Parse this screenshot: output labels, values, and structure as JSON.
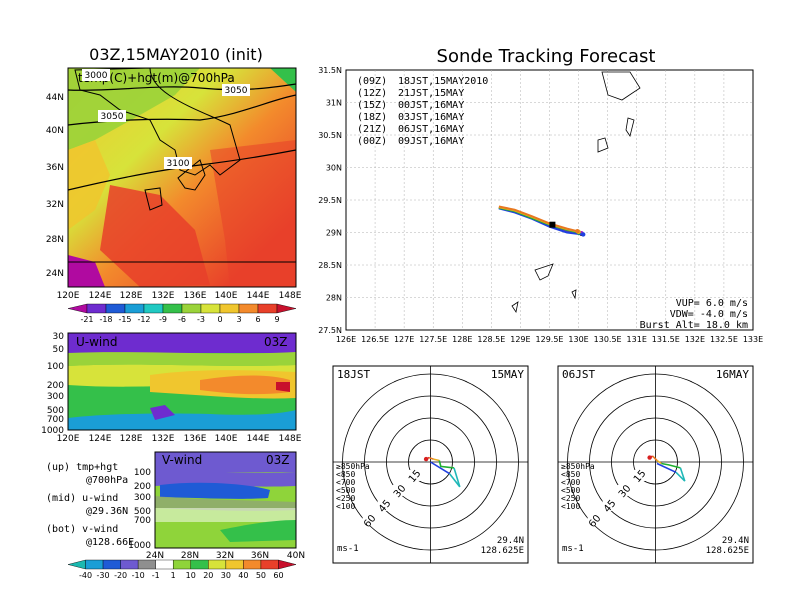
{
  "left_title": "03Z,15MAY2010 (init)",
  "right_title": "Sonde Tracking Forecast",
  "map": {
    "var_label": "temp(C)+hgt(m)@700hPa",
    "xticks": [
      "120E",
      "124E",
      "128E",
      "132E",
      "136E",
      "140E",
      "144E",
      "148E"
    ],
    "yticks": [
      "44N",
      "40N",
      "36N",
      "32N",
      "28N",
      "24N"
    ],
    "contours": [
      "3000",
      "3050",
      "3050",
      "3100"
    ],
    "cbar_labels": [
      "-21",
      "-18",
      "-15",
      "-12",
      "-9",
      "-6",
      "-3",
      "0",
      "3",
      "6",
      "9"
    ],
    "cbar_colors": [
      "#b00aa0",
      "#6e2ccf",
      "#1f5bd6",
      "#1a9ed6",
      "#20c9c2",
      "#34c04a",
      "#9ad33a",
      "#d7e33a",
      "#f0c62e",
      "#f38a2c",
      "#e8402a",
      "#c8102c"
    ]
  },
  "uwind": {
    "label": "U-wind",
    "time": "03Z",
    "yticks": [
      "30",
      "50",
      "100",
      "200",
      "300",
      "500",
      "700",
      "1000"
    ],
    "xticks": [
      "120E",
      "124E",
      "128E",
      "132E",
      "136E",
      "140E",
      "144E",
      "148E"
    ]
  },
  "vwind": {
    "label": "V-wind",
    "time": "03Z",
    "yticks": [
      "100",
      "200",
      "300",
      "500",
      "700",
      "1000"
    ],
    "xticks": [
      "24N",
      "28N",
      "32N",
      "36N",
      "40N"
    ]
  },
  "legend_notes": [
    {
      "a": "(up) tmp+hgt",
      "b": "@700hPa"
    },
    {
      "a": "(mid) u-wind",
      "b": "@29.36N"
    },
    {
      "a": "(bot) v-wind",
      "b": "@128.66E"
    }
  ],
  "wind_cbar": {
    "labels": [
      "-40",
      "-30",
      "-20",
      "-10",
      "-1",
      "1",
      "10",
      "20",
      "30",
      "40",
      "50",
      "60"
    ],
    "colors": [
      "#1bb9b0",
      "#1a9ed6",
      "#1f5bd6",
      "#6e5ad0",
      "#8f8f8f",
      "#ffffff",
      "#8fd43a",
      "#34c04a",
      "#d7e33a",
      "#f0c62e",
      "#f38a2c",
      "#e8402a",
      "#c8102c"
    ]
  },
  "chart_data": [
    {
      "type": "line",
      "title": "Sonde Tracking Forecast",
      "xticks": [
        "126E",
        "126.5E",
        "127E",
        "127.5E",
        "128E",
        "128.5E",
        "129E",
        "129.5E",
        "130E",
        "130.5E",
        "131E",
        "131.5E",
        "132E",
        "132.5E",
        "133E"
      ],
      "yticks": [
        "31.5N",
        "31N",
        "30.5N",
        "30N",
        "29.5N",
        "29N",
        "28.5N",
        "28N",
        "27.5N"
      ],
      "xlim": [
        126,
        133
      ],
      "ylim": [
        27.5,
        31.5
      ],
      "grid": true,
      "legend": [
        {
          "code": "(09Z)",
          "text": "18JST,15MAY2010",
          "color": "#000000"
        },
        {
          "code": "(12Z)",
          "text": "21JST,15MAY",
          "color": "#a020c0"
        },
        {
          "code": "(15Z)",
          "text": "00JST,16MAY",
          "color": "#2040e0"
        },
        {
          "code": "(18Z)",
          "text": "03JST,16MAY",
          "color": "#20b030"
        },
        {
          "code": "(21Z)",
          "text": "06JST,16MAY",
          "color": "#e8b020"
        },
        {
          "code": "(00Z)",
          "text": "09JST,16MAY",
          "color": "#e87820"
        }
      ],
      "series": [
        {
          "name": "(09Z) 18JST,15MAY2010",
          "color": "#000000",
          "x": [
            128.63,
            128.9,
            129.2,
            129.5,
            129.8,
            130.05
          ],
          "y": [
            29.38,
            29.32,
            29.22,
            29.1,
            29.02,
            28.98
          ]
        },
        {
          "name": "(12Z) 21JST,15MAY",
          "color": "#a020c0",
          "x": [
            128.63,
            128.9,
            129.2,
            129.5,
            129.8,
            130.05
          ],
          "y": [
            29.39,
            29.33,
            29.23,
            29.11,
            29.03,
            28.99
          ]
        },
        {
          "name": "(15Z) 00JST,16MAY",
          "color": "#2040e0",
          "x": [
            128.63,
            128.9,
            129.2,
            129.5,
            129.8,
            130.08
          ],
          "y": [
            29.37,
            29.31,
            29.21,
            29.09,
            29.0,
            28.97
          ]
        },
        {
          "name": "(18Z) 03JST,16MAY",
          "color": "#20b030",
          "x": [
            128.63,
            128.9,
            129.2,
            129.5,
            129.8,
            130.0
          ],
          "y": [
            29.38,
            29.33,
            29.22,
            29.12,
            29.04,
            29.0
          ]
        },
        {
          "name": "(21Z) 06JST,16MAY",
          "color": "#e8b020",
          "x": [
            128.63,
            128.9,
            129.2,
            129.5,
            129.8,
            130.0
          ],
          "y": [
            29.39,
            29.34,
            29.24,
            29.13,
            29.05,
            29.01
          ]
        },
        {
          "name": "(00Z) 09JST,16MAY",
          "color": "#e87820",
          "x": [
            128.63,
            128.9,
            129.2,
            129.5,
            129.8,
            129.98
          ],
          "y": [
            29.4,
            29.35,
            29.25,
            29.14,
            29.06,
            29.02
          ]
        }
      ],
      "annotations": [
        "VUP=  6.0  m/s",
        "VDW= -4.0  m/s",
        "Burst Alt=  18.0  km"
      ]
    },
    {
      "type": "scatter",
      "title_left": "18JST",
      "title_right": "15MAY",
      "ring_labels": [
        "15",
        "30",
        "45",
        "60"
      ],
      "unit": "ms-1",
      "levels": [
        {
          "label": "≥850hPa",
          "color": "#d82020"
        },
        {
          "label": "<850",
          "color": "#e87820"
        },
        {
          "label": "<700",
          "color": "#e8b020"
        },
        {
          "label": "<500",
          "color": "#20b030"
        },
        {
          "label": "<250",
          "color": "#20b8b8"
        },
        {
          "label": "<100",
          "color": "#2040e0"
        }
      ],
      "hodograph": [
        {
          "color": "#d82020",
          "u": [
            -3,
            -1
          ],
          "v": [
            2,
            3
          ]
        },
        {
          "color": "#e87820",
          "u": [
            -1,
            2
          ],
          "v": [
            3,
            2
          ]
        },
        {
          "color": "#e8b020",
          "u": [
            2,
            6
          ],
          "v": [
            2,
            1
          ]
        },
        {
          "color": "#20b030",
          "u": [
            6,
            7,
            16
          ],
          "v": [
            1,
            -3,
            -4
          ]
        },
        {
          "color": "#20b8b8",
          "u": [
            16,
            20,
            13
          ],
          "v": [
            -4,
            -17,
            -8
          ]
        },
        {
          "color": "#2040e0",
          "u": [
            13,
            0
          ],
          "v": [
            -8,
            0
          ]
        }
      ],
      "location": [
        "29.4N",
        "128.625E"
      ]
    },
    {
      "type": "scatter",
      "title_left": "06JST",
      "title_right": "16MAY",
      "ring_labels": [
        "15",
        "30",
        "45",
        "60"
      ],
      "unit": "ms-1",
      "levels": [
        {
          "label": "≥850hPa",
          "color": "#d82020"
        },
        {
          "label": "<850",
          "color": "#e87820"
        },
        {
          "label": "<700",
          "color": "#e8b020"
        },
        {
          "label": "<500",
          "color": "#20b030"
        },
        {
          "label": "<250",
          "color": "#20b8b8"
        },
        {
          "label": "<100",
          "color": "#2040e0"
        }
      ],
      "hodograph": [
        {
          "color": "#d82020",
          "u": [
            -4,
            -2
          ],
          "v": [
            3,
            4
          ]
        },
        {
          "color": "#e87820",
          "u": [
            -2,
            1
          ],
          "v": [
            4,
            1
          ]
        },
        {
          "color": "#e8b020",
          "u": [
            1,
            4
          ],
          "v": [
            1,
            -1
          ]
        },
        {
          "color": "#20b030",
          "u": [
            4,
            9,
            17
          ],
          "v": [
            -1,
            -2,
            -4
          ]
        },
        {
          "color": "#20b8b8",
          "u": [
            17,
            20,
            14
          ],
          "v": [
            -4,
            -13,
            -7
          ]
        },
        {
          "color": "#2040e0",
          "u": [
            14,
            1
          ],
          "v": [
            -7,
            -1
          ]
        }
      ],
      "location": [
        "29.4N",
        "128.625E"
      ]
    }
  ]
}
